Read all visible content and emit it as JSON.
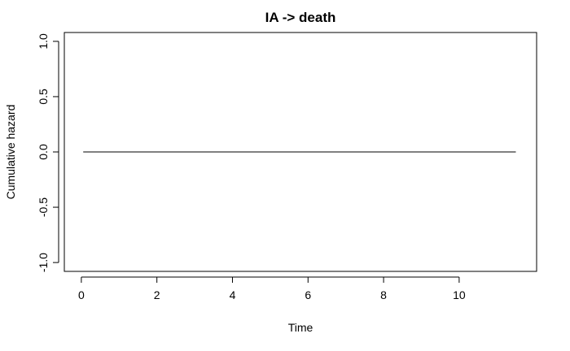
{
  "chart_data": {
    "type": "line",
    "title": "IA -> death",
    "xlabel": "Time",
    "ylabel": "Cumulative hazard",
    "xlim": [
      -0.45,
      12.05
    ],
    "ylim": [
      -1.08,
      1.08
    ],
    "x_ticks": [
      0,
      2,
      4,
      6,
      8,
      10
    ],
    "x_tick_labels": [
      "0",
      "2",
      "4",
      "6",
      "8",
      "10"
    ],
    "y_ticks": [
      -1.0,
      -0.5,
      0.0,
      0.5,
      1.0
    ],
    "y_tick_labels": [
      "-1.0",
      "-0.5",
      "0.0",
      "0.5",
      "1.0"
    ],
    "grid": false,
    "legend": "none",
    "series": [
      {
        "color": "#000000",
        "x": [
          0.05,
          11.5
        ],
        "y": [
          0.0,
          0.0
        ]
      }
    ]
  }
}
